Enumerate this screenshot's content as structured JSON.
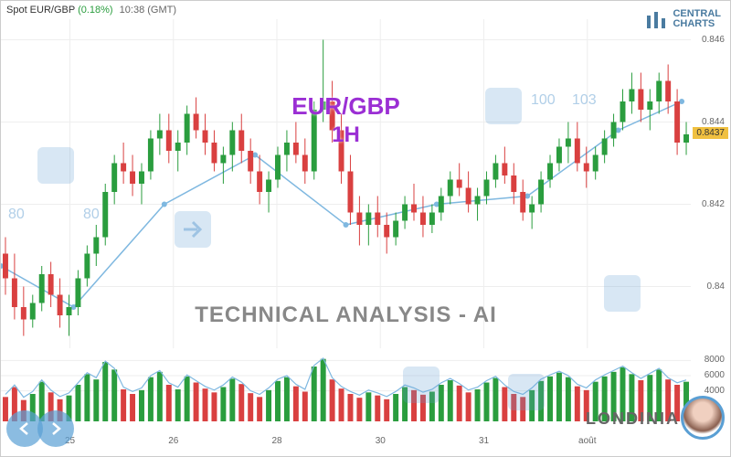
{
  "header": {
    "symbol": "Spot EUR/GBP",
    "change": "(0.18%)",
    "time": "10:38 (GMT)"
  },
  "logo": {
    "line1": "CENTRAL",
    "line2": "CHARTS"
  },
  "overlay": {
    "pair": "EUR/GBP",
    "timeframe": "1H",
    "tech": "TECHNICAL  ANALYSIS - AI",
    "brand": "LONDINIA"
  },
  "watermark_numbers": [
    "80",
    "80",
    "100",
    "103"
  ],
  "main_chart": {
    "type": "candlestick",
    "background": "#ffffff",
    "grid_color": "#eeeeee",
    "up_color": "#2a9d3e",
    "down_color": "#d94040",
    "wick_color": "#333333",
    "line_color": "#7fb8e0",
    "ylim": [
      0.8385,
      0.8465
    ],
    "yticks": [
      0.84,
      0.842,
      0.844,
      0.846
    ],
    "current_price": 0.8437,
    "candles": [
      {
        "o": 0.8408,
        "h": 0.8412,
        "l": 0.8398,
        "c": 0.8402
      },
      {
        "o": 0.8402,
        "h": 0.8408,
        "l": 0.8392,
        "c": 0.8395
      },
      {
        "o": 0.8395,
        "h": 0.84,
        "l": 0.8388,
        "c": 0.8392
      },
      {
        "o": 0.8392,
        "h": 0.8398,
        "l": 0.839,
        "c": 0.8396
      },
      {
        "o": 0.8396,
        "h": 0.8405,
        "l": 0.8394,
        "c": 0.8403
      },
      {
        "o": 0.8403,
        "h": 0.8406,
        "l": 0.8395,
        "c": 0.8398
      },
      {
        "o": 0.8398,
        "h": 0.8402,
        "l": 0.839,
        "c": 0.8393
      },
      {
        "o": 0.8393,
        "h": 0.8398,
        "l": 0.8388,
        "c": 0.8395
      },
      {
        "o": 0.8395,
        "h": 0.8404,
        "l": 0.8393,
        "c": 0.8402
      },
      {
        "o": 0.8402,
        "h": 0.841,
        "l": 0.84,
        "c": 0.8408
      },
      {
        "o": 0.8408,
        "h": 0.8415,
        "l": 0.8405,
        "c": 0.8412
      },
      {
        "o": 0.8412,
        "h": 0.8425,
        "l": 0.841,
        "c": 0.8423
      },
      {
        "o": 0.8423,
        "h": 0.8432,
        "l": 0.842,
        "c": 0.843
      },
      {
        "o": 0.843,
        "h": 0.8435,
        "l": 0.8425,
        "c": 0.8428
      },
      {
        "o": 0.8428,
        "h": 0.8432,
        "l": 0.8422,
        "c": 0.8425
      },
      {
        "o": 0.8425,
        "h": 0.843,
        "l": 0.842,
        "c": 0.8428
      },
      {
        "o": 0.8428,
        "h": 0.8438,
        "l": 0.8426,
        "c": 0.8436
      },
      {
        "o": 0.8436,
        "h": 0.8442,
        "l": 0.8432,
        "c": 0.8438
      },
      {
        "o": 0.8438,
        "h": 0.8442,
        "l": 0.843,
        "c": 0.8433
      },
      {
        "o": 0.8433,
        "h": 0.8438,
        "l": 0.8428,
        "c": 0.8435
      },
      {
        "o": 0.8435,
        "h": 0.8444,
        "l": 0.8432,
        "c": 0.8442
      },
      {
        "o": 0.8442,
        "h": 0.8446,
        "l": 0.8436,
        "c": 0.8438
      },
      {
        "o": 0.8438,
        "h": 0.8442,
        "l": 0.8432,
        "c": 0.8435
      },
      {
        "o": 0.8435,
        "h": 0.8438,
        "l": 0.8428,
        "c": 0.843
      },
      {
        "o": 0.843,
        "h": 0.8434,
        "l": 0.8425,
        "c": 0.8432
      },
      {
        "o": 0.8432,
        "h": 0.844,
        "l": 0.8428,
        "c": 0.8438
      },
      {
        "o": 0.8438,
        "h": 0.8442,
        "l": 0.843,
        "c": 0.8433
      },
      {
        "o": 0.8433,
        "h": 0.8436,
        "l": 0.8425,
        "c": 0.8428
      },
      {
        "o": 0.8428,
        "h": 0.8432,
        "l": 0.842,
        "c": 0.8423
      },
      {
        "o": 0.8423,
        "h": 0.8428,
        "l": 0.8418,
        "c": 0.8426
      },
      {
        "o": 0.8426,
        "h": 0.8434,
        "l": 0.8424,
        "c": 0.8432
      },
      {
        "o": 0.8432,
        "h": 0.8438,
        "l": 0.8428,
        "c": 0.8435
      },
      {
        "o": 0.8435,
        "h": 0.844,
        "l": 0.843,
        "c": 0.8432
      },
      {
        "o": 0.8432,
        "h": 0.8436,
        "l": 0.8425,
        "c": 0.8428
      },
      {
        "o": 0.8428,
        "h": 0.8445,
        "l": 0.8426,
        "c": 0.8443
      },
      {
        "o": 0.8443,
        "h": 0.846,
        "l": 0.844,
        "c": 0.8445
      },
      {
        "o": 0.8445,
        "h": 0.845,
        "l": 0.8435,
        "c": 0.8438
      },
      {
        "o": 0.8438,
        "h": 0.8442,
        "l": 0.8425,
        "c": 0.8428
      },
      {
        "o": 0.8428,
        "h": 0.8432,
        "l": 0.8415,
        "c": 0.8418
      },
      {
        "o": 0.8418,
        "h": 0.8422,
        "l": 0.841,
        "c": 0.8415
      },
      {
        "o": 0.8415,
        "h": 0.842,
        "l": 0.841,
        "c": 0.8418
      },
      {
        "o": 0.8418,
        "h": 0.8422,
        "l": 0.8412,
        "c": 0.8415
      },
      {
        "o": 0.8415,
        "h": 0.8418,
        "l": 0.8408,
        "c": 0.8412
      },
      {
        "o": 0.8412,
        "h": 0.8418,
        "l": 0.841,
        "c": 0.8416
      },
      {
        "o": 0.8416,
        "h": 0.8422,
        "l": 0.8414,
        "c": 0.842
      },
      {
        "o": 0.842,
        "h": 0.8425,
        "l": 0.8416,
        "c": 0.8418
      },
      {
        "o": 0.8418,
        "h": 0.8422,
        "l": 0.8412,
        "c": 0.8415
      },
      {
        "o": 0.8415,
        "h": 0.842,
        "l": 0.8413,
        "c": 0.8418
      },
      {
        "o": 0.8418,
        "h": 0.8424,
        "l": 0.8416,
        "c": 0.8422
      },
      {
        "o": 0.8422,
        "h": 0.8428,
        "l": 0.842,
        "c": 0.8426
      },
      {
        "o": 0.8426,
        "h": 0.843,
        "l": 0.8422,
        "c": 0.8424
      },
      {
        "o": 0.8424,
        "h": 0.8428,
        "l": 0.8418,
        "c": 0.842
      },
      {
        "o": 0.842,
        "h": 0.8424,
        "l": 0.8416,
        "c": 0.8422
      },
      {
        "o": 0.8422,
        "h": 0.8428,
        "l": 0.842,
        "c": 0.8426
      },
      {
        "o": 0.8426,
        "h": 0.8432,
        "l": 0.8424,
        "c": 0.843
      },
      {
        "o": 0.843,
        "h": 0.8434,
        "l": 0.8425,
        "c": 0.8427
      },
      {
        "o": 0.8427,
        "h": 0.843,
        "l": 0.842,
        "c": 0.8423
      },
      {
        "o": 0.8423,
        "h": 0.8426,
        "l": 0.8416,
        "c": 0.8418
      },
      {
        "o": 0.8418,
        "h": 0.8422,
        "l": 0.8414,
        "c": 0.842
      },
      {
        "o": 0.842,
        "h": 0.8428,
        "l": 0.8418,
        "c": 0.8426
      },
      {
        "o": 0.8426,
        "h": 0.8432,
        "l": 0.8424,
        "c": 0.843
      },
      {
        "o": 0.843,
        "h": 0.8436,
        "l": 0.8428,
        "c": 0.8434
      },
      {
        "o": 0.8434,
        "h": 0.844,
        "l": 0.843,
        "c": 0.8436
      },
      {
        "o": 0.8436,
        "h": 0.844,
        "l": 0.8428,
        "c": 0.843
      },
      {
        "o": 0.843,
        "h": 0.8434,
        "l": 0.8424,
        "c": 0.8428
      },
      {
        "o": 0.8428,
        "h": 0.8434,
        "l": 0.8426,
        "c": 0.8432
      },
      {
        "o": 0.8432,
        "h": 0.8438,
        "l": 0.843,
        "c": 0.8436
      },
      {
        "o": 0.8436,
        "h": 0.8442,
        "l": 0.8434,
        "c": 0.844
      },
      {
        "o": 0.844,
        "h": 0.8448,
        "l": 0.8438,
        "c": 0.8445
      },
      {
        "o": 0.8445,
        "h": 0.8452,
        "l": 0.8442,
        "c": 0.8448
      },
      {
        "o": 0.8448,
        "h": 0.8452,
        "l": 0.844,
        "c": 0.8443
      },
      {
        "o": 0.8443,
        "h": 0.8448,
        "l": 0.8438,
        "c": 0.8445
      },
      {
        "o": 0.8445,
        "h": 0.8452,
        "l": 0.8442,
        "c": 0.845
      },
      {
        "o": 0.845,
        "h": 0.8454,
        "l": 0.8442,
        "c": 0.8445
      },
      {
        "o": 0.8445,
        "h": 0.8448,
        "l": 0.8432,
        "c": 0.8435
      },
      {
        "o": 0.8435,
        "h": 0.844,
        "l": 0.8432,
        "c": 0.8437
      }
    ],
    "trend_line": [
      {
        "x": 0,
        "y": 0.8405
      },
      {
        "x": 8,
        "y": 0.8395
      },
      {
        "x": 18,
        "y": 0.842
      },
      {
        "x": 28,
        "y": 0.8432
      },
      {
        "x": 38,
        "y": 0.8415
      },
      {
        "x": 48,
        "y": 0.842
      },
      {
        "x": 58,
        "y": 0.8422
      },
      {
        "x": 68,
        "y": 0.8438
      },
      {
        "x": 75,
        "y": 0.8445
      }
    ]
  },
  "volume_chart": {
    "type": "bar",
    "ylim": [
      0,
      9000
    ],
    "yticks": [
      4000,
      6000,
      8000
    ],
    "up_color": "#2a9d3e",
    "down_color": "#d94040",
    "line_color": "#7fb8e0",
    "values": [
      3200,
      4500,
      2800,
      3600,
      5200,
      3800,
      2900,
      3400,
      4800,
      6200,
      5500,
      7800,
      6800,
      4200,
      3600,
      4100,
      5800,
      6500,
      4800,
      4200,
      5900,
      5100,
      4300,
      3800,
      4500,
      5600,
      4900,
      3700,
      3200,
      4100,
      5300,
      5800,
      4600,
      3900,
      7200,
      8200,
      5500,
      4300,
      3600,
      3100,
      3800,
      3400,
      2900,
      3600,
      4500,
      4100,
      3500,
      3900,
      4800,
      5400,
      4700,
      3800,
      4200,
      5100,
      5700,
      4500,
      3600,
      3200,
      4100,
      5300,
      5900,
      6400,
      5800,
      4600,
      4100,
      5200,
      5900,
      6500,
      7100,
      6200,
      5400,
      6100,
      6800,
      5500,
      4800,
      5200
    ]
  },
  "x_axis": {
    "labels": [
      {
        "pos": 0.1,
        "text": "25"
      },
      {
        "pos": 0.25,
        "text": "26"
      },
      {
        "pos": 0.4,
        "text": "28"
      },
      {
        "pos": 0.55,
        "text": "30"
      },
      {
        "pos": 0.7,
        "text": "31"
      },
      {
        "pos": 0.85,
        "text": "août"
      }
    ]
  }
}
